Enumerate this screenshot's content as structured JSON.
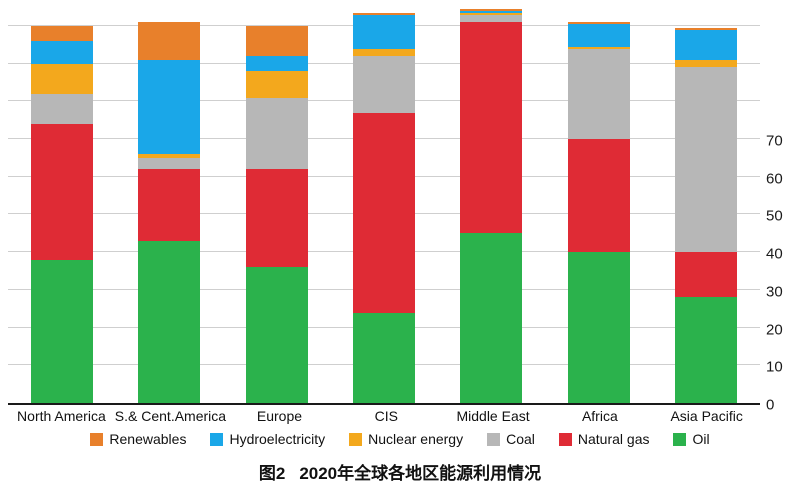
{
  "caption": {
    "prefix": "图2",
    "text": "2020年全球各地区能源利用情况"
  },
  "y_axis": {
    "ticks": [
      0,
      10,
      20,
      30,
      40,
      50,
      60,
      70
    ]
  },
  "legend": [
    {
      "key": "renewables",
      "label": "Renewables",
      "color": "#e8802b"
    },
    {
      "key": "hydroelectricity",
      "label": "Hydroelectricity",
      "color": "#1aa7e8"
    },
    {
      "key": "nuclear-energy",
      "label": "Nuclear energy",
      "color": "#f3a81d"
    },
    {
      "key": "coal",
      "label": "Coal",
      "color": "#b7b7b7"
    },
    {
      "key": "natural-gas",
      "label": "Natural gas",
      "color": "#df2b35"
    },
    {
      "key": "oil",
      "label": "Oil",
      "color": "#2bb24c"
    }
  ],
  "chart_data": {
    "type": "bar",
    "stacked": true,
    "title": "图2 2020年全球各地区能源利用情况",
    "xlabel": "",
    "ylabel": "",
    "ylim": [
      0,
      105
    ],
    "gridlines": [
      10,
      20,
      30,
      40,
      50,
      60,
      70,
      80,
      90,
      100
    ],
    "grid": true,
    "legend_position": "bottom",
    "categories": [
      "North America",
      "S.& Cent.America",
      "Europe",
      "CIS",
      "Middle East",
      "Africa",
      "Asia Pacific"
    ],
    "series": [
      {
        "name": "Oil",
        "key": "oil",
        "color": "#2bb24c",
        "values": [
          38,
          43,
          36,
          24,
          45,
          40,
          28
        ]
      },
      {
        "name": "Natural gas",
        "key": "natural-gas",
        "color": "#df2b35",
        "values": [
          36,
          19,
          26,
          53,
          56,
          30,
          12
        ]
      },
      {
        "name": "Coal",
        "key": "coal",
        "color": "#b7b7b7",
        "values": [
          8,
          3,
          19,
          15,
          2,
          24,
          49
        ]
      },
      {
        "name": "Nuclear energy",
        "key": "nuclear-energy",
        "color": "#f3a81d",
        "values": [
          8,
          1,
          7,
          2,
          0.5,
          0.5,
          2
        ]
      },
      {
        "name": "Hydroelectricity",
        "key": "hydroelectricity",
        "color": "#1aa7e8",
        "values": [
          6,
          25,
          4,
          9,
          0.5,
          6,
          8
        ]
      },
      {
        "name": "Renewables",
        "key": "renewables",
        "color": "#e8802b",
        "values": [
          4,
          10,
          8,
          0.5,
          0.5,
          0.5,
          0.5
        ]
      }
    ]
  }
}
